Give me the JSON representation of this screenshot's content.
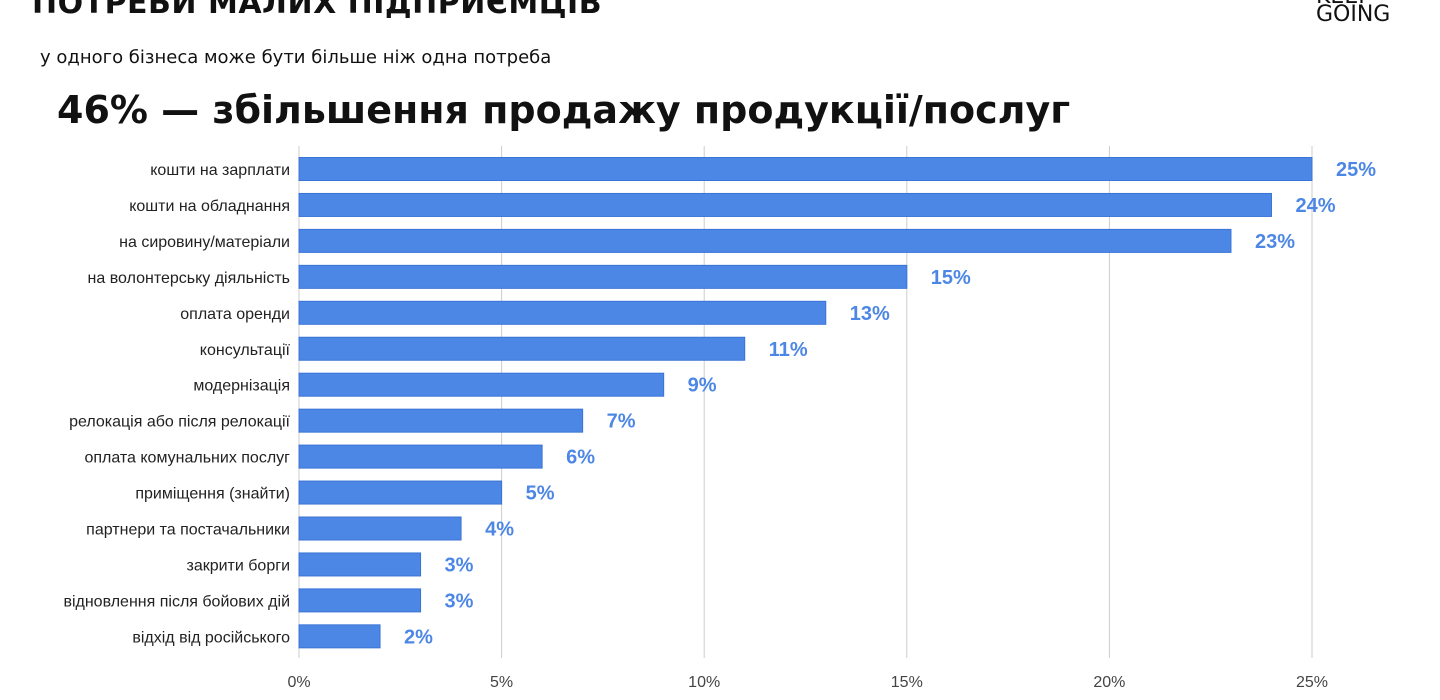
{
  "page": {
    "title": "ПОТРЕБИ МАЛИХ ПІДПРИЄМЦІВ",
    "subtitle": "у одного бізнеса може бути більше ніж одна потреба"
  },
  "logo": {
    "line1": "KEEP",
    "line2": "GOING",
    "accent_color": "#f4e600"
  },
  "headline": "46% — збільшення продажу продукції/послуг",
  "chart_data": {
    "type": "bar",
    "orientation": "horizontal",
    "categories": [
      "кошти на зарплати",
      "кошти на обладнання",
      "на сировину/матеріали",
      "на волонтерську діяльність",
      "оплата оренди",
      "консультації",
      "модернізація",
      "релокація або після релокації",
      "оплата комунальних послуг",
      "приміщення (знайти)",
      "партнери та постачальники",
      "закрити борги",
      "відновлення після бойових дій",
      "відхід від російського"
    ],
    "values": [
      25,
      24,
      23,
      15,
      13,
      11,
      9,
      7,
      6,
      5,
      4,
      3,
      3,
      2
    ],
    "value_labels": [
      "25%",
      "24%",
      "23%",
      "15%",
      "13%",
      "11%",
      "9%",
      "7%",
      "6%",
      "5%",
      "4%",
      "3%",
      "3%",
      "2%"
    ],
    "xlim": [
      0,
      25
    ],
    "xticks": [
      0,
      5,
      10,
      15,
      20,
      25
    ],
    "xtick_labels": [
      "0%",
      "5%",
      "10%",
      "15%",
      "20%",
      "25%"
    ],
    "grid": "vertical",
    "legend": "none",
    "colors": {
      "bar": "#4d87e6",
      "bar_stroke": "#3a73d6",
      "value_label": "#4d87e6",
      "grid": "#cccccc"
    }
  }
}
